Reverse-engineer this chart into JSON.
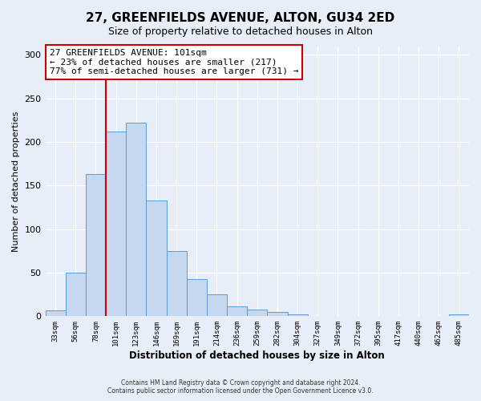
{
  "title": "27, GREENFIELDS AVENUE, ALTON, GU34 2ED",
  "subtitle": "Size of property relative to detached houses in Alton",
  "xlabel": "Distribution of detached houses by size in Alton",
  "ylabel": "Number of detached properties",
  "bin_labels": [
    "33sqm",
    "56sqm",
    "78sqm",
    "101sqm",
    "123sqm",
    "146sqm",
    "169sqm",
    "191sqm",
    "214sqm",
    "236sqm",
    "259sqm",
    "282sqm",
    "304sqm",
    "327sqm",
    "349sqm",
    "372sqm",
    "395sqm",
    "417sqm",
    "440sqm",
    "462sqm",
    "485sqm"
  ],
  "bar_heights": [
    7,
    50,
    163,
    212,
    222,
    133,
    75,
    43,
    25,
    11,
    8,
    5,
    2,
    0,
    0,
    0,
    0,
    0,
    0,
    0,
    2
  ],
  "bar_color": "#c5d8f0",
  "bar_edge_color": "#5b9bd5",
  "vline_index": 3,
  "vline_color": "#cc0000",
  "ylim": [
    0,
    310
  ],
  "yticks": [
    0,
    50,
    100,
    150,
    200,
    250,
    300
  ],
  "annotation_title": "27 GREENFIELDS AVENUE: 101sqm",
  "annotation_line1": "← 23% of detached houses are smaller (217)",
  "annotation_line2": "77% of semi-detached houses are larger (731) →",
  "annotation_box_color": "#ffffff",
  "annotation_box_edge_color": "#cc0000",
  "footer_line1": "Contains HM Land Registry data © Crown copyright and database right 2024.",
  "footer_line2": "Contains public sector information licensed under the Open Government Licence v3.0.",
  "background_color": "#e8eef8",
  "plot_background_color": "#e8eef8",
  "grid_color": "#ffffff"
}
